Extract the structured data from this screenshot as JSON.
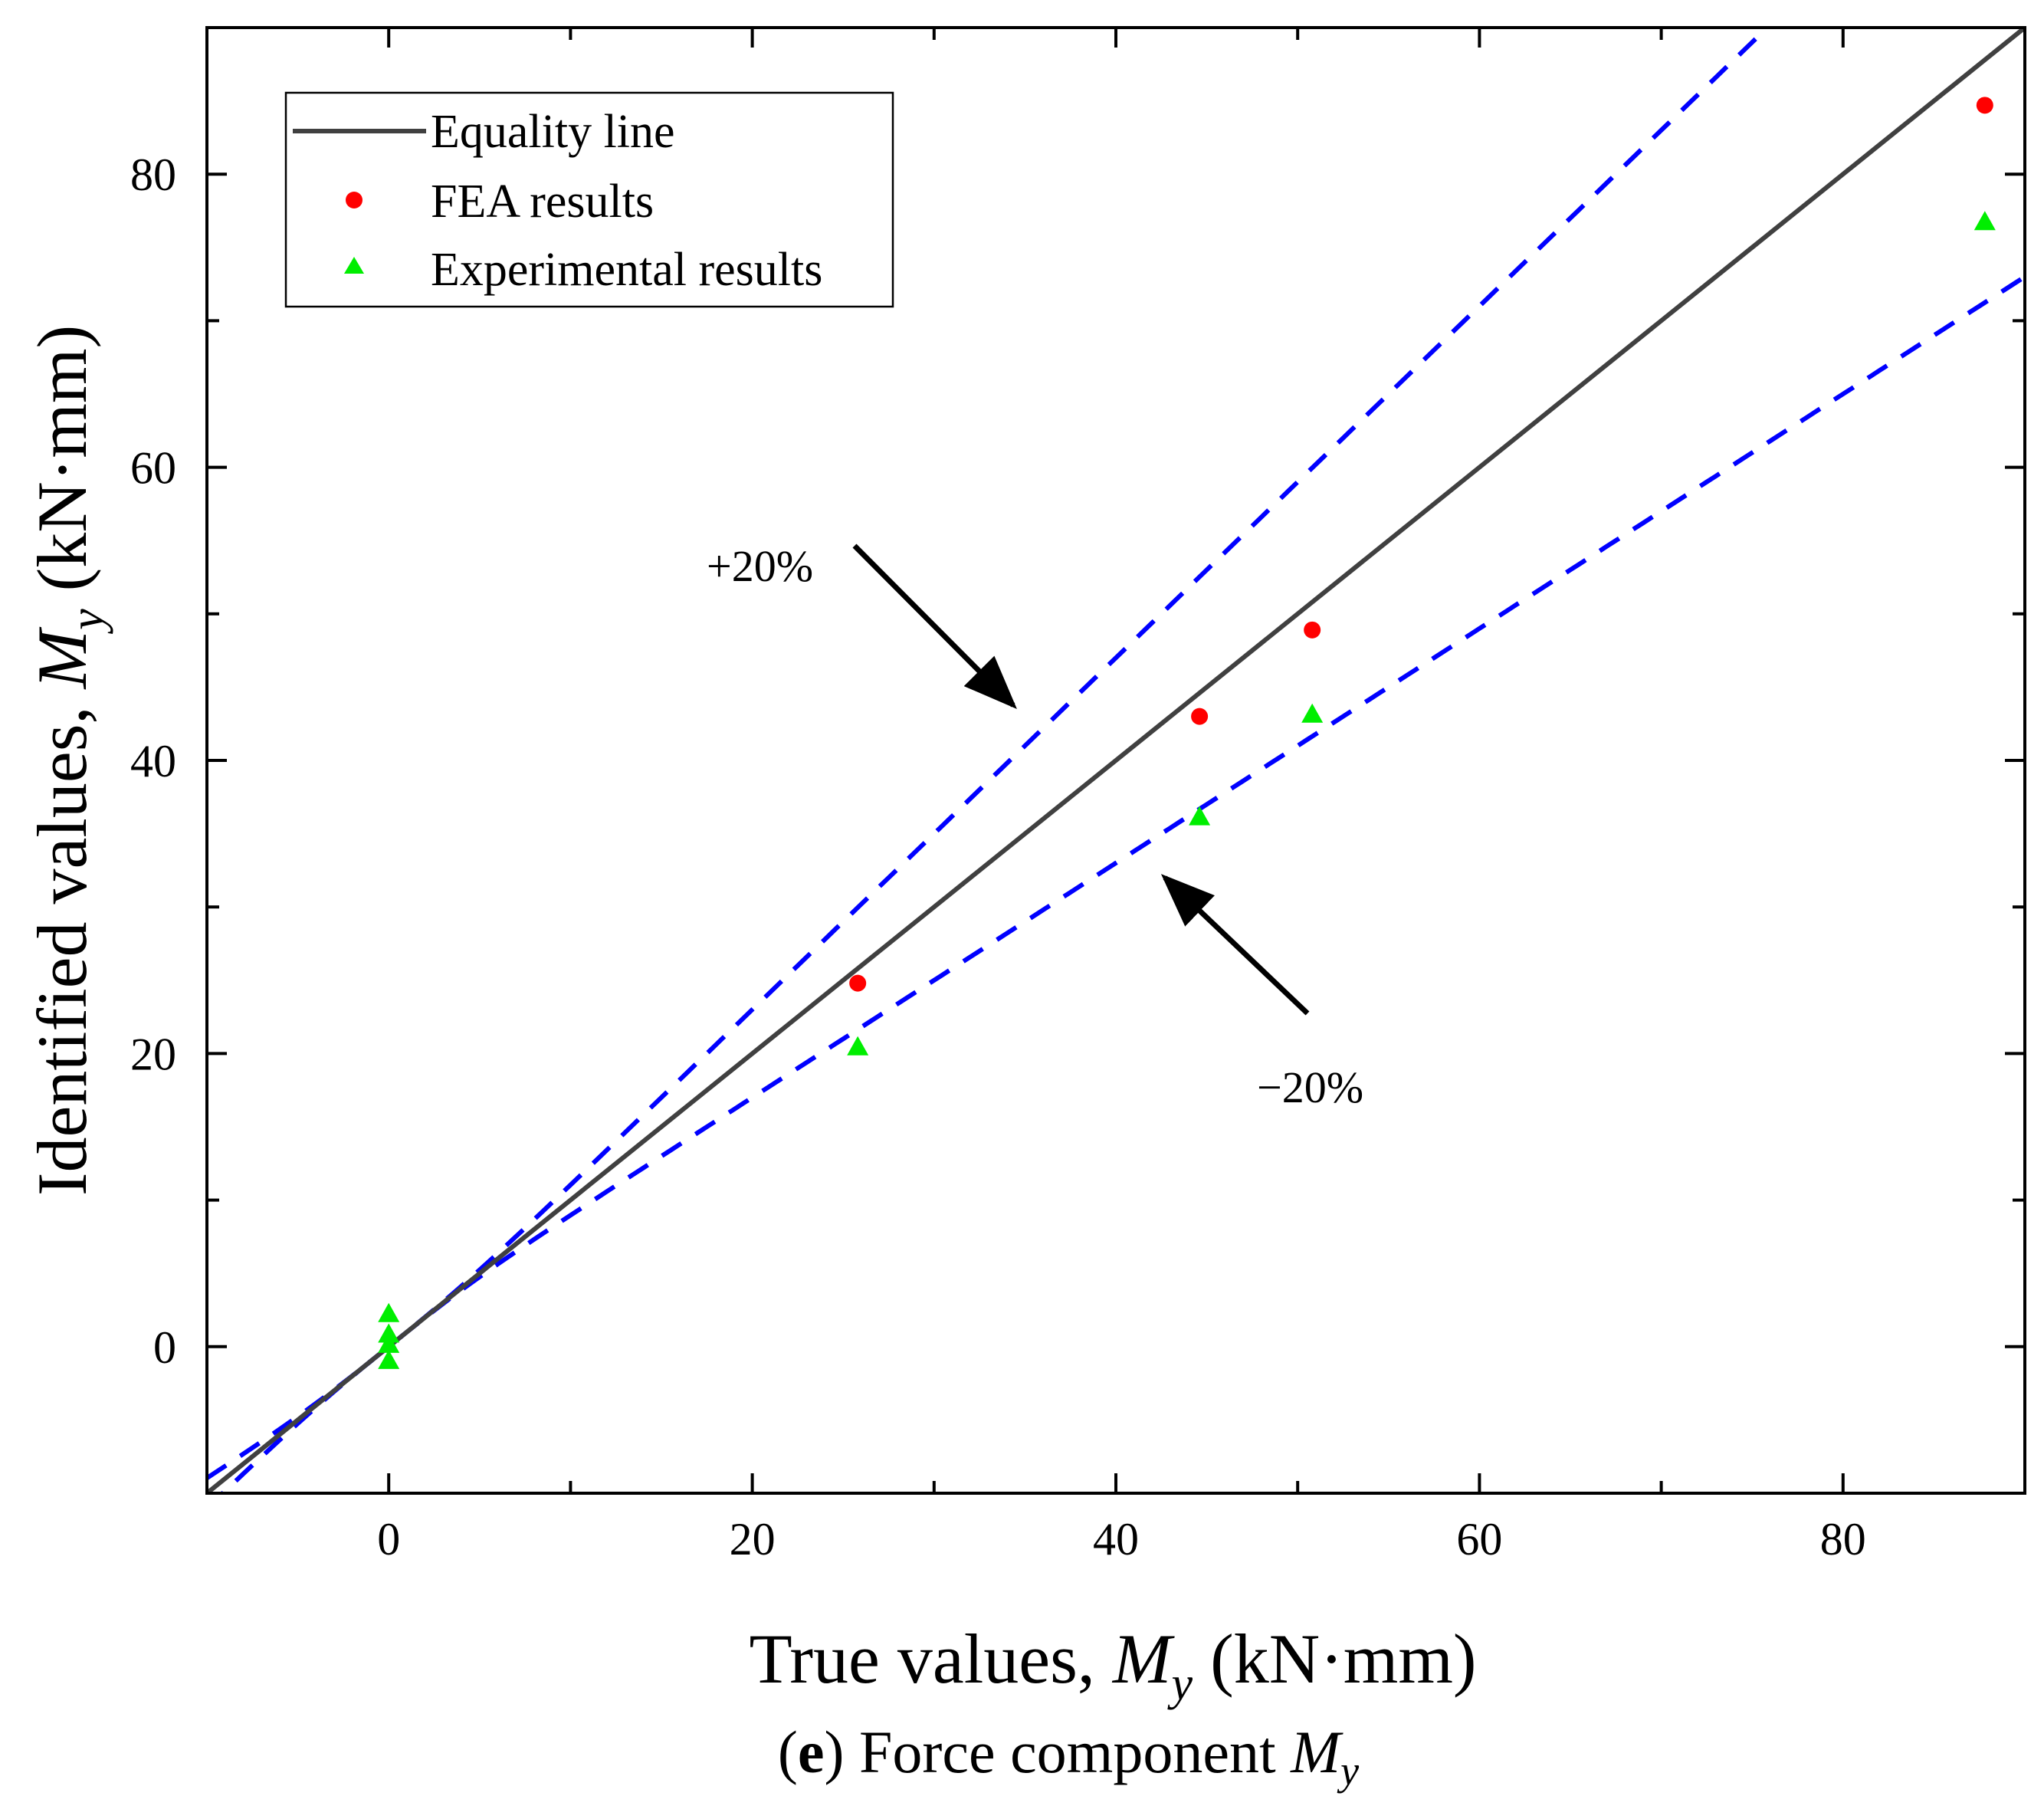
{
  "chart_data": {
    "type": "scatter",
    "xlabel": {
      "prefix": "True values, ",
      "symbol": "M",
      "sub": "y",
      "unit": " (kN·mm)"
    },
    "ylabel": {
      "prefix": "Identified values, ",
      "symbol": "M",
      "sub": "y",
      "unit": " (kN·mm)"
    },
    "xlim": [
      -10,
      90
    ],
    "ylim": [
      -10,
      90
    ],
    "xticks": [
      0,
      20,
      40,
      60,
      80
    ],
    "yticks": [
      0,
      20,
      40,
      60,
      80
    ],
    "xtick_labels": [
      "0",
      "20",
      "40",
      "60",
      "80"
    ],
    "ytick_labels": [
      "0",
      "20",
      "40",
      "60",
      "80"
    ],
    "legend": {
      "position": "top-left",
      "entries": [
        "Equality line",
        "FEA results",
        "Experimental results"
      ]
    },
    "series": [
      {
        "name": "Equality line",
        "kind": "line",
        "color": "#404040",
        "x": [
          -10,
          90
        ],
        "y": [
          -10,
          90
        ]
      },
      {
        "name": "FEA results",
        "kind": "scatter",
        "marker": "circle",
        "color": "#ff0000",
        "x": [
          25.8,
          44.6,
          50.8,
          87.8
        ],
        "y": [
          24.8,
          43.0,
          48.9,
          84.7
        ]
      },
      {
        "name": "Experimental results",
        "kind": "scatter",
        "marker": "triangle",
        "color": "#00ee00",
        "x": [
          0,
          0,
          0,
          0,
          25.8,
          44.6,
          50.8,
          87.8
        ],
        "y": [
          2.2,
          0.8,
          0.1,
          -1.0,
          20.4,
          36.1,
          43.1,
          76.7
        ]
      },
      {
        "name": "+20%",
        "kind": "dashed",
        "color": "#0000ff",
        "slope": 1.2
      },
      {
        "name": "-20%",
        "kind": "dashed",
        "color": "#0000ff",
        "slope": 0.8
      }
    ],
    "annotations": [
      {
        "text": "+20%",
        "points_to": [
          35,
          43
        ]
      },
      {
        "text": "−20%",
        "points_to": [
          42.5,
          32.8
        ]
      }
    ]
  },
  "caption": {
    "letter": "e",
    "text": " Force component ",
    "symbol": "M",
    "sub": "y"
  }
}
